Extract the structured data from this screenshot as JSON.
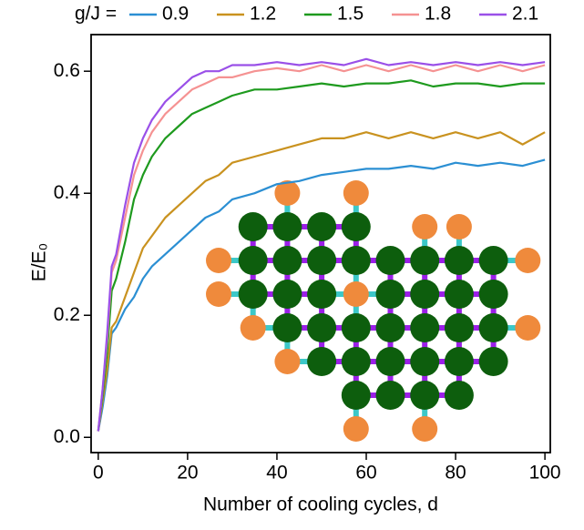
{
  "chart_data": {
    "type": "line",
    "legend_title": "g/J =",
    "x_label": "Number of cooling cycles, d",
    "y_label": "E/E₀",
    "x": [
      0,
      1,
      2,
      3,
      4,
      6,
      8,
      10,
      12,
      15,
      18,
      21,
      24,
      27,
      30,
      35,
      40,
      45,
      50,
      55,
      60,
      65,
      70,
      75,
      80,
      85,
      90,
      95,
      100
    ],
    "series": [
      {
        "name": "0.9",
        "color": "#2b8fd3",
        "values": [
          0.01,
          0.05,
          0.1,
          0.17,
          0.18,
          0.21,
          0.23,
          0.26,
          0.28,
          0.3,
          0.32,
          0.34,
          0.36,
          0.37,
          0.39,
          0.4,
          0.415,
          0.42,
          0.43,
          0.435,
          0.44,
          0.44,
          0.445,
          0.44,
          0.45,
          0.445,
          0.45,
          0.445,
          0.455
        ]
      },
      {
        "name": "1.2",
        "color": "#c9921f",
        "values": [
          0.01,
          0.06,
          0.11,
          0.18,
          0.19,
          0.23,
          0.27,
          0.31,
          0.33,
          0.36,
          0.38,
          0.4,
          0.42,
          0.43,
          0.45,
          0.46,
          0.47,
          0.48,
          0.49,
          0.49,
          0.5,
          0.49,
          0.5,
          0.49,
          0.5,
          0.49,
          0.5,
          0.48,
          0.5
        ]
      },
      {
        "name": "1.5",
        "color": "#1e9a1e",
        "values": [
          0.01,
          0.07,
          0.14,
          0.24,
          0.26,
          0.32,
          0.39,
          0.43,
          0.46,
          0.49,
          0.51,
          0.53,
          0.54,
          0.55,
          0.56,
          0.57,
          0.57,
          0.575,
          0.58,
          0.575,
          0.58,
          0.58,
          0.585,
          0.575,
          0.58,
          0.58,
          0.575,
          0.58,
          0.58
        ]
      },
      {
        "name": "1.8",
        "color": "#f59292",
        "values": [
          0.01,
          0.08,
          0.16,
          0.27,
          0.29,
          0.36,
          0.43,
          0.47,
          0.5,
          0.53,
          0.55,
          0.57,
          0.58,
          0.59,
          0.59,
          0.6,
          0.605,
          0.6,
          0.61,
          0.6,
          0.61,
          0.6,
          0.61,
          0.6,
          0.61,
          0.6,
          0.61,
          0.6,
          0.61
        ]
      },
      {
        "name": "2.1",
        "color": "#9a50e8",
        "values": [
          0.01,
          0.08,
          0.17,
          0.28,
          0.3,
          0.38,
          0.45,
          0.49,
          0.52,
          0.55,
          0.57,
          0.59,
          0.6,
          0.6,
          0.61,
          0.61,
          0.615,
          0.61,
          0.615,
          0.61,
          0.62,
          0.61,
          0.615,
          0.61,
          0.615,
          0.61,
          0.615,
          0.61,
          0.615
        ]
      }
    ],
    "xlim": [
      -1.6,
      101.2
    ],
    "xticks": [
      0,
      20,
      40,
      60,
      80,
      100
    ],
    "ylim": [
      -0.025,
      0.66
    ],
    "yticks": [
      {
        "value": 0,
        "label": "0.0"
      },
      0.2,
      0.4,
      0.6
    ]
  }
}
